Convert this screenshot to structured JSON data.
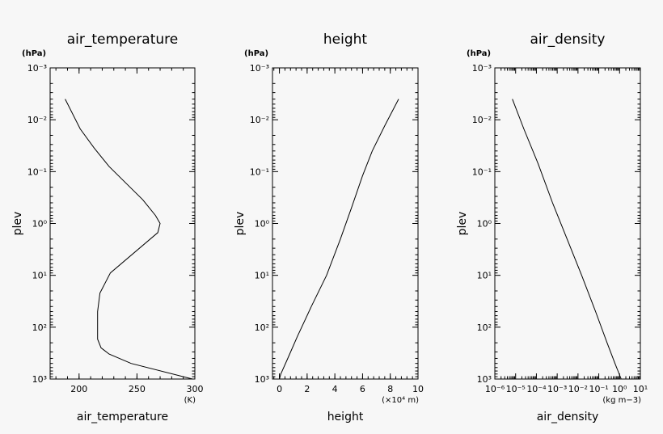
{
  "chart_data": [
    {
      "type": "line",
      "title": "air_temperature",
      "xlabel": "air_temperature",
      "ylabel": "plev",
      "x_unit": "(K)",
      "y_unit": "(hPa)",
      "x_scale": "linear",
      "y_scale": "log",
      "y_inverted": true,
      "xlim": [
        175,
        300
      ],
      "ylim": [
        0.001,
        1000
      ],
      "x_ticks": [
        200,
        250,
        300
      ],
      "y_ticks": [
        0.001,
        0.01,
        0.1,
        1,
        10,
        100,
        1000
      ],
      "y_tick_labels": [
        "10⁻³",
        "10⁻²",
        "10⁻¹",
        "10⁰",
        "10¹",
        "10²",
        "10³"
      ],
      "grid": false,
      "series": [
        {
          "x": [
            188,
            201,
            213,
            226,
            255,
            266,
            270,
            268,
            227,
            218,
            216,
            216,
            219,
            226,
            245,
            298
          ],
          "y": [
            0.004,
            0.015,
            0.035,
            0.08,
            0.35,
            0.7,
            1,
            1.5,
            9,
            22,
            50,
            170,
            250,
            330,
            500,
            1000
          ]
        }
      ]
    },
    {
      "type": "line",
      "title": "height",
      "xlabel": "height",
      "ylabel": "plev",
      "x_unit": "(×10⁴ m)",
      "y_unit": "(hPa)",
      "x_scale": "linear",
      "y_scale": "log",
      "y_inverted": true,
      "xlim": [
        -0.5,
        10
      ],
      "ylim": [
        0.001,
        1000
      ],
      "x_ticks": [
        0,
        2,
        4,
        6,
        8,
        10
      ],
      "y_ticks": [
        0.001,
        0.01,
        0.1,
        1,
        10,
        100,
        1000
      ],
      "y_tick_labels": [
        "10⁻³",
        "10⁻²",
        "10⁻¹",
        "10⁰",
        "10¹",
        "10²",
        "10³"
      ],
      "grid": false,
      "series": [
        {
          "x": [
            8.6,
            7.6,
            6.7,
            6.0,
            5.2,
            4.4,
            3.4,
            2.3,
            1.3,
            0.6,
            0.1,
            0.0
          ],
          "y": [
            0.004,
            0.013,
            0.04,
            0.12,
            0.5,
            2,
            10,
            40,
            150,
            400,
            800,
            1000
          ]
        }
      ]
    },
    {
      "type": "line",
      "title": "air_density",
      "xlabel": "air_density",
      "ylabel": "plev",
      "x_unit": "(kg m−3)",
      "y_unit": "(hPa)",
      "x_scale": "log",
      "y_scale": "log",
      "y_inverted": true,
      "xlim": [
        1e-06,
        10
      ],
      "ylim": [
        0.001,
        1000
      ],
      "x_ticks": [
        1e-06,
        1e-05,
        0.0001,
        0.001,
        0.01,
        0.1,
        1,
        10
      ],
      "x_tick_labels": [
        "10⁻⁶",
        "10⁻⁵",
        "10⁻⁴",
        "10⁻³",
        "10⁻²",
        "10⁻¹",
        "10⁰",
        "10¹"
      ],
      "y_ticks": [
        0.001,
        0.01,
        0.1,
        1,
        10,
        100,
        1000
      ],
      "y_tick_labels": [
        "10⁻³",
        "10⁻²",
        "10⁻¹",
        "10⁰",
        "10¹",
        "10²",
        "10³"
      ],
      "grid": false,
      "series": [
        {
          "x": [
            7e-06,
            2.5e-05,
            0.00012,
            0.0006,
            0.003,
            0.015,
            0.07,
            0.25,
            0.6,
            1.2
          ],
          "y": [
            0.004,
            0.015,
            0.07,
            0.4,
            2,
            10,
            50,
            200,
            500,
            1000
          ]
        }
      ]
    }
  ]
}
